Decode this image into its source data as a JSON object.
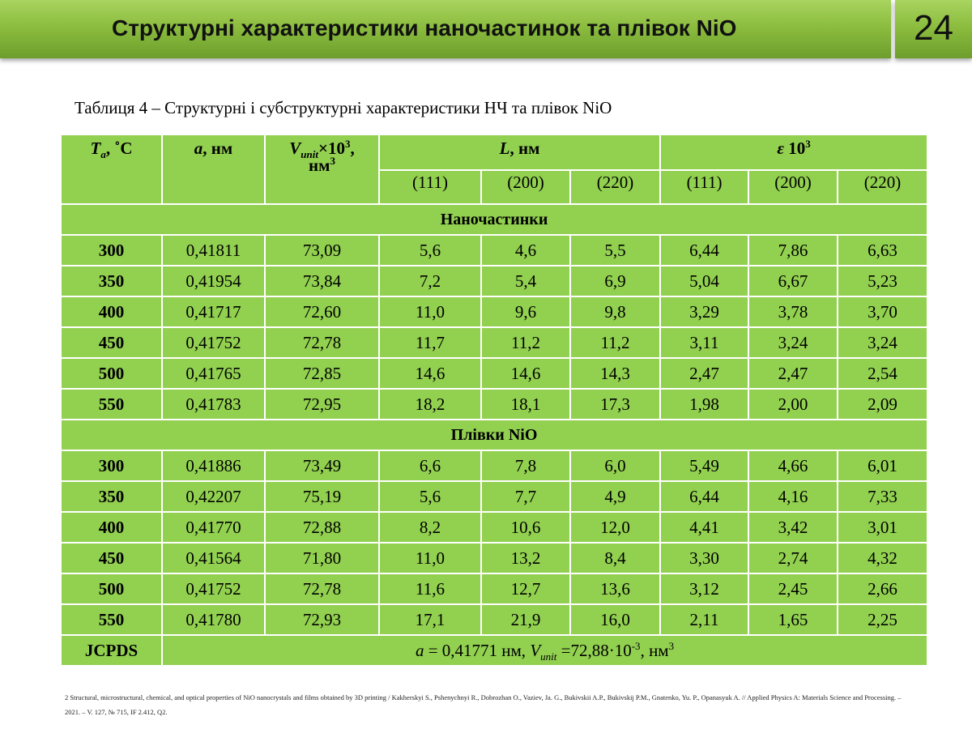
{
  "header": {
    "title": "Структурні характеристики наночастинок та плівок NiO",
    "slide_number": "24"
  },
  "caption": "Таблиця 4 – Структурні і субструктурні характеристики НЧ та плівок NiO",
  "table": {
    "head": {
      "col_t_main": "T",
      "col_t_sub": "a",
      "col_t_rest": ", ˚С",
      "col_a_var": "a",
      "col_a_unit": ", нм",
      "col_v_var": "V",
      "col_v_sub": "unit",
      "col_v_mid": "×10",
      "col_v_exp": "3",
      "col_v_comma": ",",
      "col_v_unit": "нм",
      "col_v_unit_exp": "3",
      "col_l_var": "L",
      "col_l_unit": ", нм",
      "col_e_var": "ε",
      "col_e_mid": " 10",
      "col_e_exp": "3",
      "sub_l": [
        "(111)",
        "(200)",
        "(220)"
      ],
      "sub_e": [
        "(111)",
        "(200)",
        "(220)"
      ]
    },
    "section_np": "Наночастинки",
    "rows_np": [
      [
        "300",
        "0,41811",
        "73,09",
        "5,6",
        "4,6",
        "5,5",
        "6,44",
        "7,86",
        "6,63"
      ],
      [
        "350",
        "0,41954",
        "73,84",
        "7,2",
        "5,4",
        "6,9",
        "5,04",
        "6,67",
        "5,23"
      ],
      [
        "400",
        "0,41717",
        "72,60",
        "11,0",
        "9,6",
        "9,8",
        "3,29",
        "3,78",
        "3,70"
      ],
      [
        "450",
        "0,41752",
        "72,78",
        "11,7",
        "11,2",
        "11,2",
        "3,11",
        "3,24",
        "3,24"
      ],
      [
        "500",
        "0,41765",
        "72,85",
        "14,6",
        "14,6",
        "14,3",
        "2,47",
        "2,47",
        "2,54"
      ],
      [
        "550",
        "0,41783",
        "72,95",
        "18,2",
        "18,1",
        "17,3",
        "1,98",
        "2,00",
        "2,09"
      ]
    ],
    "section_films": "Плівки NiO",
    "rows_films": [
      [
        "300",
        "0,41886",
        "73,49",
        "6,6",
        "7,8",
        "6,0",
        "5,49",
        "4,66",
        "6,01"
      ],
      [
        "350",
        "0,42207",
        "75,19",
        "5,6",
        "7,7",
        "4,9",
        "6,44",
        "4,16",
        "7,33"
      ],
      [
        "400",
        "0,41770",
        "72,88",
        "8,2",
        "10,6",
        "12,0",
        "4,41",
        "3,42",
        "3,01"
      ],
      [
        "450",
        "0,41564",
        "71,80",
        "11,0",
        "13,2",
        "8,4",
        "3,30",
        "2,74",
        "4,32"
      ],
      [
        "500",
        "0,41752",
        "72,78",
        "11,6",
        "12,7",
        "13,6",
        "3,12",
        "2,45",
        "2,66"
      ],
      [
        "550",
        "0,41780",
        "72,93",
        "17,1",
        "21,9",
        "16,0",
        "2,11",
        "1,65",
        "2,25"
      ]
    ],
    "jcpds": {
      "label": "JCPDS",
      "a_var": "a",
      "a_text": " = 0,41771 нм, ",
      "v_var": "V",
      "v_sub": "unit",
      "v_text": " =72,88·10",
      "v_exp": "-3",
      "v_unit": ", нм",
      "v_unit_exp": "3"
    }
  },
  "footnote": "2 Structural, microstructural, chemical, and optical properties of NiO nanocrystals and films obtained by 3D printing / Kakherskyi S., Pshenychnyi R., Dobrozhan O., Vaziev, Ja. G., Bukivskii A.P., Bukivskij P.M., Gnatenko, Yu. P., Opanasyuk A. // Applied Physics A: Materials Science and Processing. – 2021. – V. 127, № 715, IF 2.412, Q2."
}
